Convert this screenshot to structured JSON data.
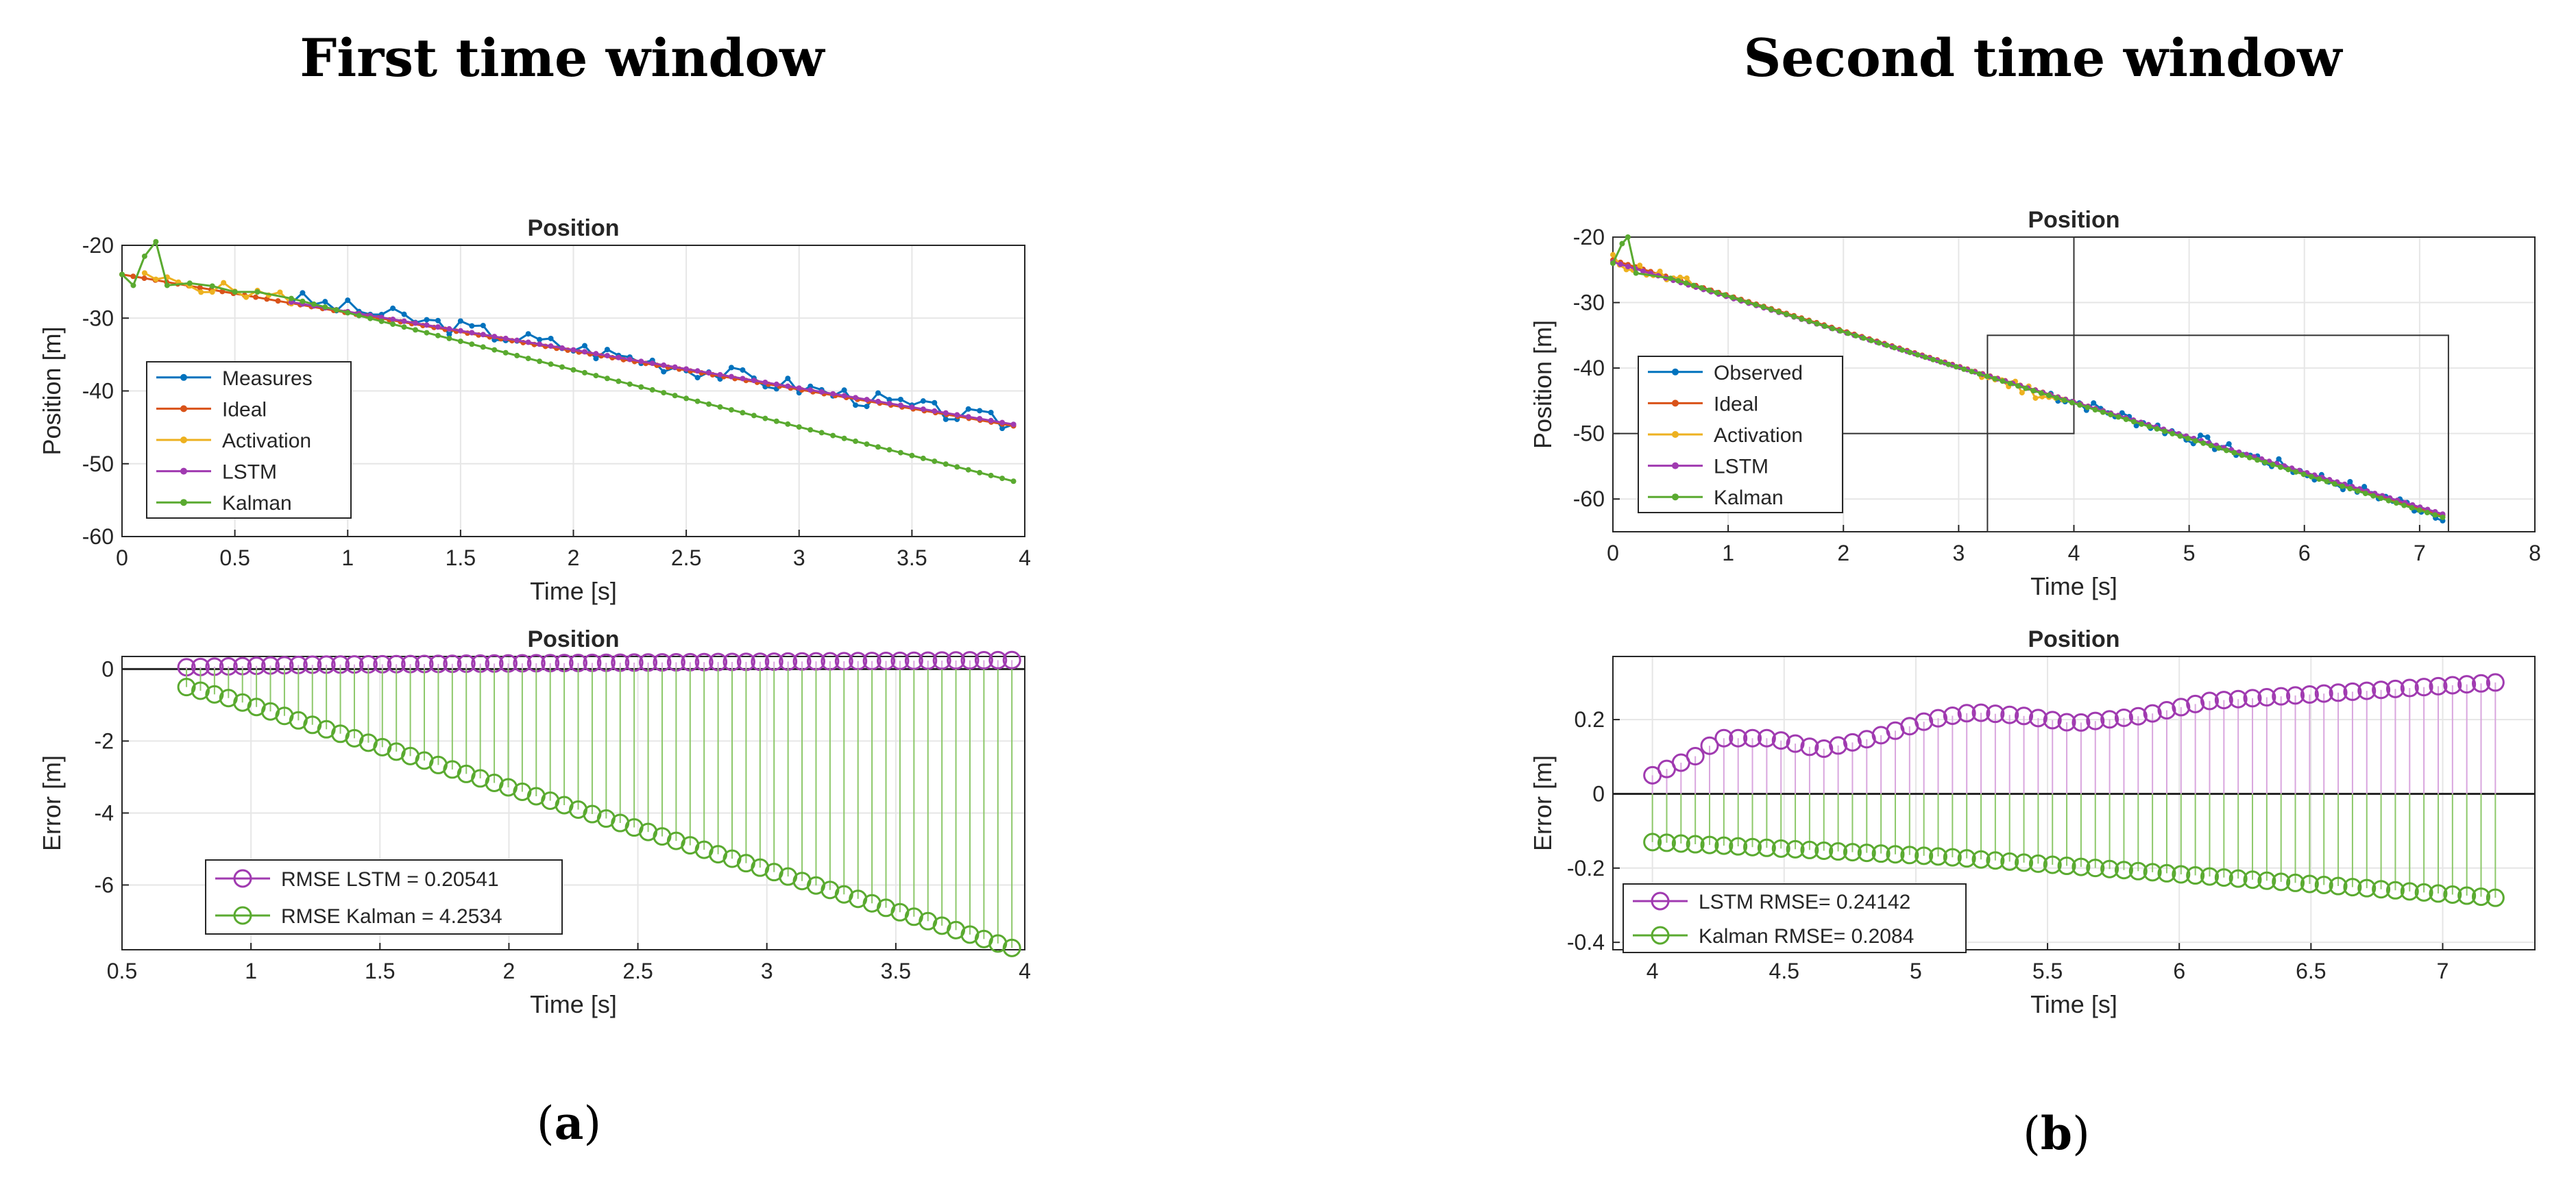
{
  "headings": {
    "left": "First time window",
    "right": "Second time window"
  },
  "captions": {
    "a_open": "(",
    "a_letter": "a",
    "a_close": ")",
    "b_open": "(",
    "b_letter": "b",
    "b_close": ")"
  },
  "colors": {
    "blue": "#0072BD",
    "red": "#D95319",
    "orange": "#EDB120",
    "purple": "#A03AB0",
    "green": "#5AAA30",
    "stemPurple": "#D9A6DE",
    "stemGreen": "#8DC86A",
    "grid": "#E6E6E6",
    "axis": "#262626"
  },
  "chart_data": [
    {
      "id": "a_top",
      "type": "line",
      "title": "Position",
      "xlabel": "Time [s]",
      "ylabel": "Position [m]",
      "xlim": [
        0,
        4
      ],
      "ylim": [
        -60,
        -20
      ],
      "xticks": [
        0,
        0.5,
        1,
        1.5,
        2,
        2.5,
        3,
        3.5,
        4
      ],
      "yticks": [
        -60,
        -50,
        -40,
        -30,
        -20
      ],
      "series": [
        {
          "name": "Measures",
          "color": "blue",
          "kind": "measures",
          "x0": 0.75,
          "x1": 3.95,
          "y0": -27.3,
          "y1": -44.6,
          "n": 64,
          "noise": 1.2,
          "seed": 3
        },
        {
          "name": "Ideal",
          "color": "red",
          "kind": "line",
          "x0": 0,
          "x1": 3.95,
          "y0": -24,
          "y1": -44.8,
          "n": 80
        },
        {
          "name": "Activation",
          "color": "orange",
          "kind": "measures",
          "x0": 0.1,
          "x1": 0.75,
          "y0": -24.5,
          "y1": -27.3,
          "n": 13,
          "noise": 0.9,
          "seed": 5
        },
        {
          "name": "LSTM",
          "color": "purple",
          "kind": "line",
          "x0": 0.75,
          "x1": 3.95,
          "y0": -27.8,
          "y1": -44.6,
          "n": 64
        },
        {
          "name": "Kalman",
          "color": "green",
          "kind": "kalman",
          "points": [
            [
              0,
              -24
            ],
            [
              0.05,
              -25.5
            ],
            [
              0.1,
              -21.5
            ],
            [
              0.15,
              -19.5
            ],
            [
              0.2,
              -25.5
            ],
            [
              0.3,
              -25.2
            ],
            [
              0.4,
              -25.6
            ],
            [
              0.5,
              -26.4
            ],
            [
              0.6,
              -26.4
            ],
            [
              0.75,
              -27.3
            ],
            [
              3.95,
              -52.4
            ]
          ],
          "n": 64
        }
      ],
      "legend": {
        "position": "bottom-left",
        "entries": [
          "Measures",
          "Ideal",
          "Activation",
          "LSTM",
          "Kalman"
        ]
      }
    },
    {
      "id": "a_bottom",
      "type": "stem",
      "title": "Position",
      "xlabel": "Time [s]",
      "ylabel": "Error [m]",
      "xlim": [
        0.5,
        4
      ],
      "ylim": [
        -7.8,
        0.35
      ],
      "xticks": [
        0.5,
        1,
        1.5,
        2,
        2.5,
        3,
        3.5,
        4
      ],
      "yticks": [
        -6,
        -4,
        -2,
        0
      ],
      "series": [
        {
          "name": "RMSE LSTM = 0.20541",
          "color": "purple",
          "x0": 0.75,
          "x1": 3.95,
          "n": 60,
          "profile": [
            [
              0,
              0.05
            ],
            [
              0.15,
              0.12
            ],
            [
              1,
              0.25
            ]
          ]
        },
        {
          "name": "RMSE Kalman = 4.2534",
          "color": "green",
          "x0": 0.75,
          "x1": 3.95,
          "n": 60,
          "profile": [
            [
              0,
              -0.5
            ],
            [
              0.05,
              -0.8
            ],
            [
              1,
              -7.75
            ]
          ]
        }
      ],
      "legend": {
        "position": "bottom-left",
        "entries": [
          "RMSE LSTM = 0.20541",
          "RMSE Kalman = 4.2534"
        ]
      }
    },
    {
      "id": "b_top",
      "type": "line",
      "title": "Position",
      "xlabel": "Time [s]",
      "ylabel": "Position [m]",
      "xlim": [
        0,
        8
      ],
      "ylim": [
        -65,
        -20
      ],
      "xticks": [
        0,
        1,
        2,
        3,
        4,
        5,
        6,
        7,
        8
      ],
      "yticks": [
        -60,
        -50,
        -40,
        -30,
        -20
      ],
      "boxes": [
        {
          "x": [
            0,
            4
          ],
          "y": [
            -50,
            -20
          ]
        },
        {
          "x": [
            3.25,
            7.25
          ],
          "y": [
            -65,
            -35
          ]
        }
      ],
      "series": [
        {
          "name": "Observed",
          "color": "blue",
          "kind": "measures",
          "x0": 3.8,
          "x1": 7.2,
          "y0": -44,
          "y1": -62.5,
          "n": 55,
          "noise": 0.9,
          "seed": 7
        },
        {
          "name": "Ideal",
          "color": "red",
          "kind": "line",
          "x0": 0,
          "x1": 7.2,
          "y0": -23.5,
          "y1": -62.5,
          "n": 110
        },
        {
          "name": "Activation",
          "color": "orange",
          "kind": "measures",
          "x0": 0,
          "x1": 0.7,
          "y0": -23.5,
          "y1": -27.5,
          "n": 12,
          "noise": 1.0,
          "seed": 11,
          "extra": {
            "x0": 3.2,
            "x1": 3.9,
            "y0": -41,
            "y1": -45,
            "n": 12
          }
        },
        {
          "name": "LSTM",
          "color": "purple",
          "kind": "line",
          "x0": 0,
          "x1": 7.2,
          "y0": -23.8,
          "y1": -62.3,
          "n": 110
        },
        {
          "name": "Kalman",
          "color": "green",
          "kind": "kalman",
          "points": [
            [
              0,
              -24
            ],
            [
              0.08,
              -21
            ],
            [
              0.13,
              -20
            ],
            [
              0.2,
              -25.5
            ],
            [
              0.5,
              -26.3
            ],
            [
              7.2,
              -62.8
            ]
          ],
          "n": 100
        }
      ],
      "legend": {
        "position": "bottom-left",
        "entries": [
          "Observed",
          "Ideal",
          "Activation",
          "LSTM",
          "Kalman"
        ]
      }
    },
    {
      "id": "b_bottom",
      "type": "stem",
      "title": "Position",
      "xlabel": "Time [s]",
      "ylabel": "Error [m]",
      "xlim": [
        3.85,
        7.35
      ],
      "ylim": [
        -0.42,
        0.37
      ],
      "xticks": [
        4,
        4.5,
        5,
        5.5,
        6,
        6.5,
        7
      ],
      "yticks": [
        -0.4,
        -0.2,
        0,
        0.2
      ],
      "series": [
        {
          "name": "LSTM RMSE= 0.24142",
          "color": "purple",
          "x0": 4.0,
          "x1": 7.2,
          "n": 60,
          "profile": [
            [
              0,
              0.05
            ],
            [
              0.05,
              0.1
            ],
            [
              0.08,
              0.15
            ],
            [
              0.14,
              0.15
            ],
            [
              0.2,
              0.12
            ],
            [
              0.26,
              0.15
            ],
            [
              0.33,
              0.2
            ],
            [
              0.38,
              0.22
            ],
            [
              0.44,
              0.21
            ],
            [
              0.5,
              0.19
            ],
            [
              0.58,
              0.21
            ],
            [
              0.66,
              0.25
            ],
            [
              1,
              0.3
            ]
          ]
        },
        {
          "name": "Kalman RMSE= 0.2084",
          "color": "green",
          "x0": 4.0,
          "x1": 7.2,
          "n": 60,
          "profile": [
            [
              0,
              -0.13
            ],
            [
              0.35,
              -0.17
            ],
            [
              1,
              -0.28
            ]
          ]
        }
      ],
      "legend": {
        "position": "bottom-left",
        "entries": [
          "LSTM RMSE= 0.24142",
          "Kalman RMSE= 0.2084"
        ]
      }
    }
  ]
}
